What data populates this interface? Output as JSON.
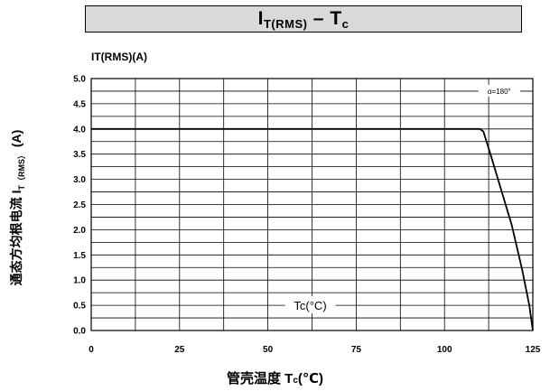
{
  "title": {
    "main": "I",
    "sub": "T(RMS)",
    "dash": " – ",
    "main2": "T",
    "sub2": "c"
  },
  "chart_data": {
    "type": "line",
    "title": "IT(RMS) – Tc",
    "ylabel_top": "IT(RMS)(A)",
    "ylabel_side": {
      "text": "通态方均根电流 I",
      "sub": "T（RMS）",
      "suffix": " (A)"
    },
    "xlabel": {
      "text": "管壳温度 T",
      "sub": "c",
      "suffix": "(℃)"
    },
    "inner_label": "Tc(°C)",
    "annotation": "α=180°",
    "xlim": [
      0,
      125
    ],
    "ylim": [
      0,
      5.0
    ],
    "x_ticks": [
      0,
      25,
      50,
      75,
      100,
      125
    ],
    "y_ticks": [
      0.0,
      0.5,
      1.0,
      1.5,
      2.0,
      2.5,
      3.0,
      3.5,
      4.0,
      4.5,
      5.0
    ],
    "grid": true,
    "series": [
      {
        "x": [
          0,
          110,
          111,
          113,
          116,
          119,
          122,
          124,
          125
        ],
        "y": [
          4.0,
          4.0,
          3.95,
          3.5,
          2.8,
          2.1,
          1.2,
          0.5,
          0.0
        ]
      }
    ]
  }
}
